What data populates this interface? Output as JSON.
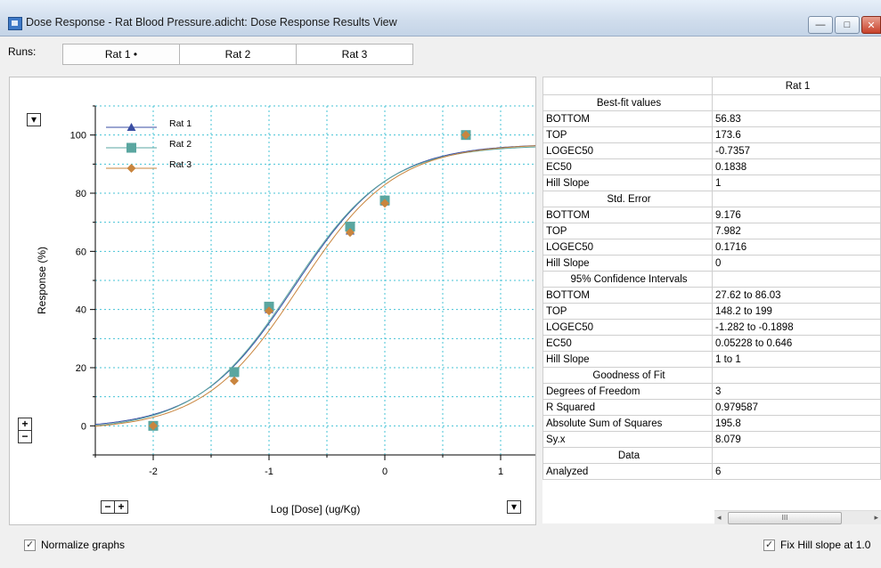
{
  "window": {
    "title": "Dose Response - Rat Blood Pressure.adicht: Dose Response Results View",
    "buttons": {
      "minimize": "—",
      "maximize": "□",
      "close": "✕"
    }
  },
  "runs": {
    "label": "Runs:",
    "tabs": [
      {
        "label": "Rat 1 •"
      },
      {
        "label": "Rat 2"
      },
      {
        "label": "Rat 3"
      }
    ]
  },
  "graph_controls": {
    "menu_glyph": "▾",
    "zoom_in_glyph": "+",
    "zoom_out_glyph": "−"
  },
  "chart_data": {
    "type": "scatter",
    "xlabel": "Log [Dose] (ug/Kg)",
    "ylabel": "Response (%)",
    "xlim": [
      -2.5,
      1.3
    ],
    "ylim": [
      -10,
      110
    ],
    "x_ticks": [
      -2,
      -1,
      0,
      1
    ],
    "y_ticks": [
      0,
      20,
      40,
      60,
      80,
      100
    ],
    "grid": true,
    "legend_position": "top-left",
    "series": [
      {
        "name": "Rat 1",
        "color": "#3a4ea3",
        "marker": "triangle",
        "x": [
          -2,
          -1.3,
          -1,
          -0.3,
          0,
          0.7
        ],
        "y": [
          0,
          18,
          40,
          67,
          77,
          100
        ],
        "fit": {
          "bottom": -1,
          "top": 97,
          "logec50": -0.78,
          "hill": 1.05
        }
      },
      {
        "name": "Rat 2",
        "color": "#5aa6a0",
        "marker": "square",
        "x": [
          -2,
          -1.3,
          -1,
          -0.3,
          0,
          0.7
        ],
        "y": [
          0,
          18.5,
          41,
          68.5,
          77.5,
          100
        ],
        "fit": {
          "bottom": -1.5,
          "top": 96.5,
          "logec50": -0.8,
          "hill": 1.05
        }
      },
      {
        "name": "Rat 3",
        "color": "#c9853e",
        "marker": "diamond",
        "x": [
          -2,
          -1.3,
          -1,
          -0.3,
          0,
          0.7
        ],
        "y": [
          0,
          15.5,
          39.5,
          66.5,
          76.5,
          100
        ],
        "fit": {
          "bottom": -1.5,
          "top": 97,
          "logec50": -0.74,
          "hill": 1.05
        }
      }
    ]
  },
  "results": {
    "column_header": "Rat 1",
    "rows": [
      {
        "name": "Best-fit values",
        "value": "",
        "section": true
      },
      {
        "name": "BOTTOM",
        "value": "56.83"
      },
      {
        "name": "TOP",
        "value": "173.6"
      },
      {
        "name": "LOGEC50",
        "value": "-0.7357"
      },
      {
        "name": "EC50",
        "value": "0.1838"
      },
      {
        "name": "Hill Slope",
        "value": "1"
      },
      {
        "name": "Std. Error",
        "value": "",
        "section": true
      },
      {
        "name": "BOTTOM",
        "value": "9.176"
      },
      {
        "name": "TOP",
        "value": "7.982"
      },
      {
        "name": "LOGEC50",
        "value": "0.1716"
      },
      {
        "name": "Hill Slope",
        "value": "0"
      },
      {
        "name": "95% Confidence Intervals",
        "value": "",
        "section": true
      },
      {
        "name": "BOTTOM",
        "value": "27.62 to 86.03"
      },
      {
        "name": "TOP",
        "value": "148.2 to 199"
      },
      {
        "name": "LOGEC50",
        "value": "-1.282 to -0.1898"
      },
      {
        "name": "EC50",
        "value": "0.05228 to 0.646"
      },
      {
        "name": "Hill Slope",
        "value": "1 to 1"
      },
      {
        "name": "Goodness of Fit",
        "value": "",
        "section": true
      },
      {
        "name": "Degrees of Freedom",
        "value": "3"
      },
      {
        "name": "R Squared",
        "value": "0.979587"
      },
      {
        "name": "Absolute Sum of Squares",
        "value": "195.8"
      },
      {
        "name": "Sy.x",
        "value": "8.079"
      },
      {
        "name": "Data",
        "value": "",
        "section": true
      },
      {
        "name": "Analyzed",
        "value": "6"
      }
    ],
    "scrollbar": {
      "left_arrow": "◂",
      "right_arrow": "▸",
      "grip": "III"
    }
  },
  "options": {
    "normalize_label": "Normalize graphs",
    "normalize_checked": true,
    "fix_hill_label": "Fix Hill slope at 1.0",
    "fix_hill_checked": true
  }
}
